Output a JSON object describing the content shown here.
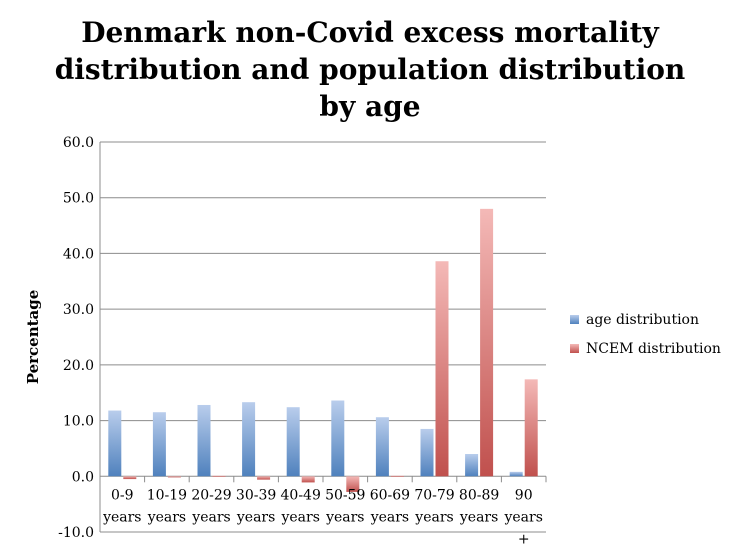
{
  "chart_data": {
    "type": "bar",
    "title_lines": [
      "Denmark non-Covid excess mortality",
      "distribution and population distribution",
      "by age"
    ],
    "xlabel": "",
    "ylabel": "Percentage",
    "ylim": [
      -10,
      60
    ],
    "yticks": [
      -10,
      0,
      10,
      20,
      30,
      40,
      50,
      60
    ],
    "ytick_labels": [
      "-10.0",
      "0.0",
      "10.0",
      "20.0",
      "30.0",
      "40.0",
      "50.0",
      "60.0"
    ],
    "grid": true,
    "legend_position": "right",
    "categories": [
      [
        "0-9",
        "years"
      ],
      [
        "10-19",
        "years"
      ],
      [
        "20-29",
        "years"
      ],
      [
        "30-39",
        "years"
      ],
      [
        "40-49",
        "years"
      ],
      [
        "50-59",
        "years"
      ],
      [
        "60-69",
        "years"
      ],
      [
        "70-79",
        "years"
      ],
      [
        "80-89",
        "years"
      ],
      [
        "90",
        "years",
        "+"
      ]
    ],
    "series": [
      {
        "name": "age distribution",
        "color": "#4f81bd",
        "values": [
          11.8,
          11.5,
          12.8,
          13.3,
          12.4,
          13.6,
          10.6,
          8.5,
          4.0,
          0.8
        ]
      },
      {
        "name": "NCEM distribution",
        "color": "#c0504d",
        "values": [
          -0.5,
          -0.2,
          0.1,
          -0.6,
          -1.1,
          -2.8,
          0.1,
          38.6,
          48.0,
          17.4
        ]
      }
    ]
  }
}
